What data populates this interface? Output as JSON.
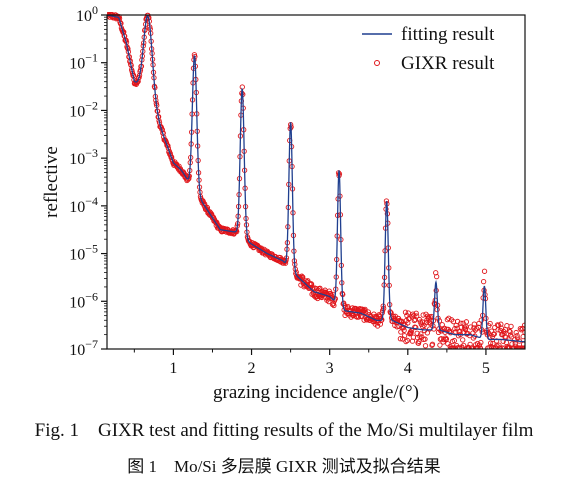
{
  "chart_data": {
    "type": "scatter",
    "xlabel": "grazing incidence angle/(°)",
    "ylabel": "reflective",
    "xlim": [
      0.15,
      5.5
    ],
    "ylim": [
      1e-07,
      1
    ],
    "yscale": "log",
    "x_ticks": [
      {
        "value": 1,
        "label": "1"
      },
      {
        "value": 2,
        "label": "2"
      },
      {
        "value": 3,
        "label": "3"
      },
      {
        "value": 4,
        "label": "4"
      },
      {
        "value": 5,
        "label": "5"
      }
    ],
    "y_ticks": [
      {
        "exp": 0,
        "base": "10",
        "sup": "0"
      },
      {
        "exp": -1,
        "base": "10",
        "sup": "−1"
      },
      {
        "exp": -2,
        "base": "10",
        "sup": "−2"
      },
      {
        "exp": -3,
        "base": "10",
        "sup": "−3"
      },
      {
        "exp": -4,
        "base": "10",
        "sup": "−4"
      },
      {
        "exp": -5,
        "base": "10",
        "sup": "−5"
      },
      {
        "exp": -6,
        "base": "10",
        "sup": "−6"
      },
      {
        "exp": -7,
        "base": "10",
        "sup": "−7"
      }
    ],
    "legend_position": "top-right",
    "series": [
      {
        "name": "fitting result",
        "style": "line",
        "color": "#1f3f8f"
      },
      {
        "name": "GIXR result",
        "style": "open-circle",
        "color": "#e0161b"
      }
    ],
    "profile": {
      "plateau_end": 0.3,
      "baseline": [
        [
          0.15,
          0.0
        ],
        [
          0.3,
          -0.05
        ],
        [
          0.4,
          -0.6
        ],
        [
          0.5,
          -1.4
        ],
        [
          0.58,
          -1.55
        ],
        [
          0.7,
          -1.8
        ],
        [
          0.8,
          -2.2
        ],
        [
          1.0,
          -3.1
        ],
        [
          1.1,
          -3.25
        ],
        [
          1.2,
          -3.5
        ],
        [
          1.4,
          -4.0
        ],
        [
          1.6,
          -4.5
        ],
        [
          1.8,
          -4.55
        ],
        [
          2.0,
          -4.8
        ],
        [
          2.2,
          -5.0
        ],
        [
          2.4,
          -5.15
        ],
        [
          2.6,
          -5.5
        ],
        [
          2.8,
          -5.8
        ],
        [
          3.0,
          -5.9
        ],
        [
          3.2,
          -6.2
        ],
        [
          3.4,
          -6.25
        ],
        [
          3.6,
          -6.4
        ],
        [
          3.8,
          -6.4
        ],
        [
          4.0,
          -6.55
        ],
        [
          4.2,
          -6.6
        ],
        [
          4.4,
          -6.6
        ],
        [
          4.6,
          -6.7
        ],
        [
          4.8,
          -6.7
        ],
        [
          5.0,
          -6.8
        ],
        [
          5.2,
          -6.8
        ],
        [
          5.5,
          -6.85
        ]
      ],
      "peaks": [
        {
          "x": 0.67,
          "log_top": -0.02,
          "width": 0.055
        },
        {
          "x": 1.27,
          "log_top": -0.85,
          "width": 0.028
        },
        {
          "x": 1.88,
          "log_top": -1.55,
          "width": 0.025
        },
        {
          "x": 2.5,
          "log_top": -2.25,
          "width": 0.022
        },
        {
          "x": 3.12,
          "log_top": -3.25,
          "width": 0.02
        },
        {
          "x": 3.73,
          "log_top": -3.9,
          "width": 0.02
        },
        {
          "x": 4.36,
          "log_top": -5.6,
          "width": 0.018
        },
        {
          "x": 4.98,
          "log_top": -5.68,
          "width": 0.018
        }
      ]
    }
  },
  "caption_en": "Fig. 1    GIXR test and fitting results of the Mo/Si multilayer film",
  "caption_zh": "图 1    Mo/Si 多层膜 GIXR 测试及拟合结果"
}
